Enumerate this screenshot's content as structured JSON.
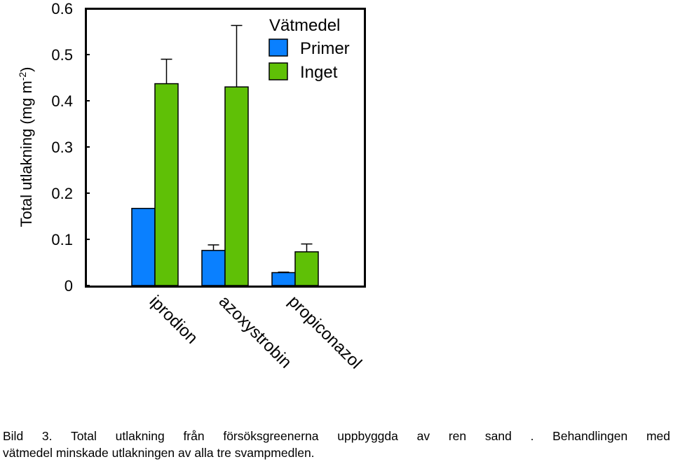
{
  "chart_data": {
    "type": "bar",
    "categories": [
      "iprodion",
      "azoxystrobin",
      "propiconazol"
    ],
    "ylabel": "Total utlakning (mg m",
    "ylabel_sup": "-2",
    "ylabel_close": ")",
    "ylim": [
      0,
      0.6
    ],
    "yticks": [
      "0",
      "0.1",
      "0.2",
      "0.3",
      "0.4",
      "0.5",
      "0.6"
    ],
    "legend_title": "Vätmedel",
    "legend_position": "top-right",
    "grid": false,
    "series": [
      {
        "name": "Primer",
        "color": "#0a80ff",
        "values": [
          0.167,
          0.076,
          0.028
        ],
        "errors": [
          null,
          0.012,
          0.001
        ]
      },
      {
        "name": "Inget",
        "color": "#5fc006",
        "values": [
          0.437,
          0.43,
          0.073
        ],
        "errors": [
          0.053,
          0.133,
          0.017
        ]
      }
    ]
  },
  "caption": {
    "line1": "Bild 3. Total utlakning från försöksgreenerna uppbyggda av ren sand . Behandlingen med",
    "line2": "vätmedel minskade utlakningen av alla tre svampmedlen."
  }
}
